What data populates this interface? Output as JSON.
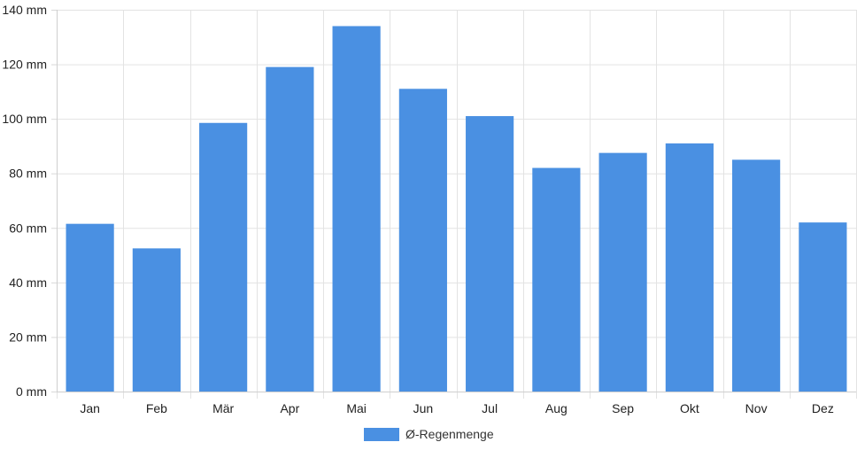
{
  "chart_data": {
    "type": "bar",
    "categories": [
      "Jan",
      "Feb",
      "Mär",
      "Apr",
      "Mai",
      "Jun",
      "Jul",
      "Aug",
      "Sep",
      "Okt",
      "Nov",
      "Dez"
    ],
    "series": [
      {
        "name": "Ø-Regenmenge",
        "color": "#4a90e2",
        "values": [
          61.5,
          52.5,
          98.5,
          119,
          134,
          111,
          101,
          82,
          87.5,
          91,
          85,
          62
        ]
      }
    ],
    "ylim": [
      0,
      140
    ],
    "y_ticks": [
      0,
      20,
      40,
      60,
      80,
      100,
      120,
      140
    ],
    "y_unit": "mm",
    "grid": true,
    "legend_position": "bottom"
  }
}
